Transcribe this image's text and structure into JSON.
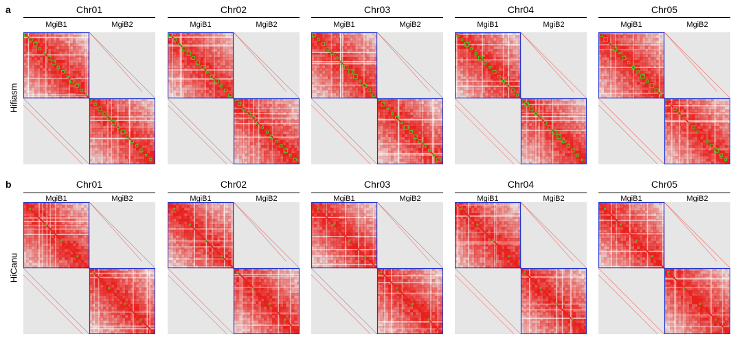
{
  "panels": [
    {
      "letter": "a",
      "assembler": "Hifiasm",
      "chromosomes": [
        "Chr01",
        "Chr02",
        "Chr03",
        "Chr04",
        "Chr05"
      ],
      "haplotypes": [
        "MgiB1",
        "MgiB2"
      ],
      "diagonal_markers": true
    },
    {
      "letter": "b",
      "assembler": "HiCanu",
      "chromosomes": [
        "Chr01",
        "Chr02",
        "Chr03",
        "Chr04",
        "Chr05"
      ],
      "haplotypes": [
        "MgiB1",
        "MgiB2"
      ],
      "diagonal_markers": false
    }
  ],
  "colors": {
    "contact": "#e8211d",
    "background": "#e6e6e6",
    "haplotype_box": "#2233cc",
    "diagonal": "#44cc22"
  }
}
